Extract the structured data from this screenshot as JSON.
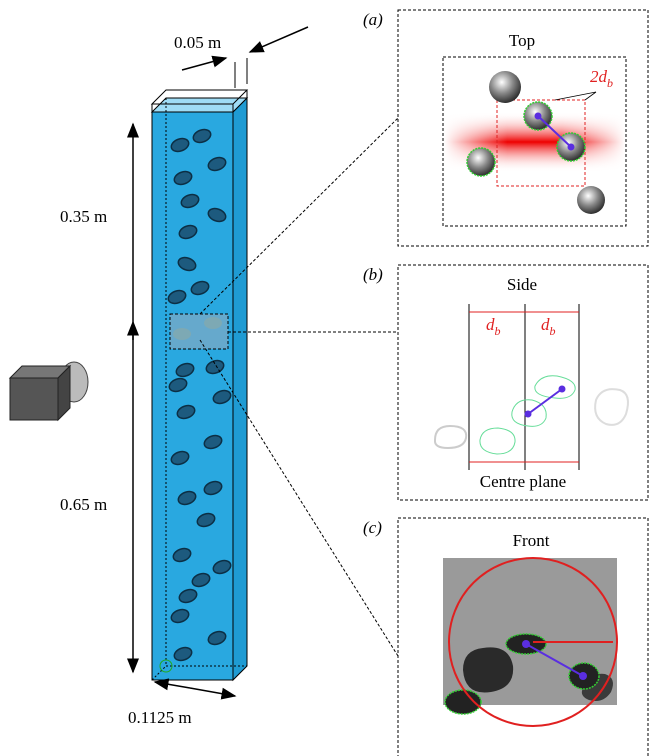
{
  "dimensions": {
    "width": "0.05 m",
    "height_top": "0.35 m",
    "height_bottom": "0.65 m",
    "depth": "0.1125 m"
  },
  "panels": [
    {
      "label": "(a)",
      "title": "Top",
      "annotation": {
        "main": "2d",
        "sub": "b"
      }
    },
    {
      "label": "(b)",
      "title": "Side",
      "left": {
        "main": "d",
        "sub": "b"
      },
      "right": {
        "main": "d",
        "sub": "b"
      },
      "caption": "Centre plane"
    },
    {
      "label": "(c)",
      "title": "Front"
    }
  ]
}
